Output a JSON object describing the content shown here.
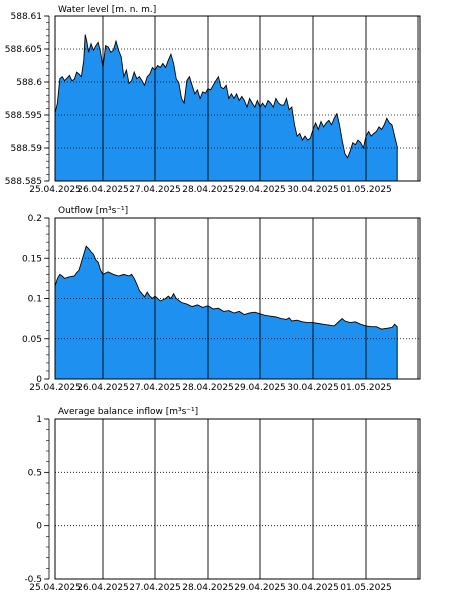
{
  "chart_data": [
    {
      "type": "area",
      "title": "Water level [m. n. m.]",
      "x": [
        "25.04.2025",
        "26.04.2025",
        "27.04.2025",
        "28.04.2025",
        "29.04.2025",
        "30.04.2025",
        "01.05.2025"
      ],
      "ylim": [
        588.585,
        588.61
      ],
      "yticks": [
        "588.61",
        "588.605",
        "588.6",
        "588.595",
        "588.59",
        "588.585"
      ],
      "grid": "vertical solid, horizontal dotted",
      "fill_color": "#1e90f0",
      "series": [
        {
          "points": [
            [
              0.0,
              588.5953
            ],
            [
              0.05,
              588.5968
            ],
            [
              0.1,
              588.6005
            ],
            [
              0.15,
              588.6008
            ],
            [
              0.2,
              588.6002
            ],
            [
              0.25,
              588.6006
            ],
            [
              0.3,
              588.601
            ],
            [
              0.35,
              588.6002
            ],
            [
              0.4,
              588.6004
            ],
            [
              0.45,
              588.6015
            ],
            [
              0.5,
              588.6012
            ],
            [
              0.55,
              588.6008
            ],
            [
              0.6,
              588.6033
            ],
            [
              0.63,
              588.6072
            ],
            [
              0.66,
              588.6062
            ],
            [
              0.7,
              588.6045
            ],
            [
              0.75,
              588.6058
            ],
            [
              0.8,
              588.6048
            ],
            [
              0.85,
              588.6055
            ],
            [
              0.9,
              588.606
            ],
            [
              0.95,
              588.6045
            ],
            [
              1.0,
              588.6022
            ],
            [
              1.05,
              588.6055
            ],
            [
              1.1,
              588.6053
            ],
            [
              1.15,
              588.6045
            ],
            [
              1.2,
              588.6048
            ],
            [
              1.25,
              588.6062
            ],
            [
              1.3,
              588.6048
            ],
            [
              1.35,
              588.6038
            ],
            [
              1.4,
              588.6008
            ],
            [
              1.45,
              588.6018
            ],
            [
              1.5,
              588.5998
            ],
            [
              1.55,
              588.6002
            ],
            [
              1.6,
              588.6015
            ],
            [
              1.65,
              588.6005
            ],
            [
              1.7,
              588.6008
            ],
            [
              1.75,
              588.6002
            ],
            [
              1.8,
              588.5995
            ],
            [
              1.85,
              588.6008
            ],
            [
              1.9,
              588.6012
            ],
            [
              1.95,
              588.6022
            ],
            [
              2.0,
              588.6018
            ],
            [
              2.05,
              588.6025
            ],
            [
              2.1,
              588.6022
            ],
            [
              2.15,
              588.6028
            ],
            [
              2.2,
              588.6022
            ],
            [
              2.25,
              588.6033
            ],
            [
              2.3,
              588.6042
            ],
            [
              2.35,
              588.6028
            ],
            [
              2.4,
              588.6005
            ],
            [
              2.45,
              588.5998
            ],
            [
              2.5,
              588.5975
            ],
            [
              2.55,
              588.5968
            ],
            [
              2.6,
              588.6002
            ],
            [
              2.65,
              588.6008
            ],
            [
              2.7,
              588.5995
            ],
            [
              2.75,
              588.5982
            ],
            [
              2.8,
              588.5988
            ],
            [
              2.85,
              588.5975
            ],
            [
              2.9,
              588.5985
            ],
            [
              2.95,
              588.5983
            ],
            [
              3.0,
              588.599
            ],
            [
              3.05,
              588.5988
            ],
            [
              3.1,
              588.5995
            ],
            [
              3.15,
              588.6002
            ],
            [
              3.2,
              588.6008
            ],
            [
              3.25,
              588.5992
            ],
            [
              3.3,
              588.599
            ],
            [
              3.35,
              588.5995
            ],
            [
              3.4,
              588.5975
            ],
            [
              3.45,
              588.5982
            ],
            [
              3.5,
              588.5975
            ],
            [
              3.55,
              588.5982
            ],
            [
              3.6,
              588.5972
            ],
            [
              3.65,
              588.5978
            ],
            [
              3.7,
              588.5972
            ],
            [
              3.75,
              588.5962
            ],
            [
              3.8,
              588.5975
            ],
            [
              3.85,
              588.5968
            ],
            [
              3.9,
              588.5962
            ],
            [
              3.95,
              588.5972
            ],
            [
              4.0,
              588.5962
            ],
            [
              4.05,
              588.5968
            ],
            [
              4.1,
              588.5962
            ],
            [
              4.15,
              588.5972
            ],
            [
              4.2,
              588.5968
            ],
            [
              4.25,
              588.5962
            ],
            [
              4.3,
              588.5975
            ],
            [
              4.35,
              588.5968
            ],
            [
              4.4,
              588.5965
            ],
            [
              4.45,
              588.5965
            ],
            [
              4.5,
              588.5975
            ],
            [
              4.55,
              588.5958
            ],
            [
              4.6,
              588.5962
            ],
            [
              4.65,
              588.5935
            ],
            [
              4.7,
              588.5918
            ],
            [
              4.75,
              588.5922
            ],
            [
              4.8,
              588.5912
            ],
            [
              4.85,
              588.5918
            ],
            [
              4.9,
              588.5912
            ],
            [
              4.95,
              588.5915
            ],
            [
              5.0,
              588.5928
            ],
            [
              5.05,
              588.5938
            ],
            [
              5.1,
              588.5928
            ],
            [
              5.15,
              588.594
            ],
            [
              5.2,
              588.5932
            ],
            [
              5.25,
              588.5938
            ],
            [
              5.3,
              588.5942
            ],
            [
              5.35,
              588.5935
            ],
            [
              5.4,
              588.5945
            ],
            [
              5.45,
              588.5952
            ],
            [
              5.5,
              588.5935
            ],
            [
              5.55,
              588.5912
            ],
            [
              5.6,
              588.5892
            ],
            [
              5.65,
              588.5885
            ],
            [
              5.7,
              588.5895
            ],
            [
              5.75,
              588.5908
            ],
            [
              5.8,
              588.5905
            ],
            [
              5.85,
              588.5912
            ],
            [
              5.9,
              588.5908
            ],
            [
              5.95,
              588.59
            ],
            [
              6.0,
              588.5918
            ],
            [
              6.05,
              588.5925
            ],
            [
              6.1,
              588.5918
            ],
            [
              6.15,
              588.5922
            ],
            [
              6.2,
              588.5925
            ],
            [
              6.25,
              588.5932
            ],
            [
              6.3,
              588.5928
            ],
            [
              6.35,
              588.5935
            ],
            [
              6.4,
              588.5945
            ],
            [
              6.45,
              588.5938
            ],
            [
              6.5,
              588.5935
            ],
            [
              6.55,
              588.5918
            ],
            [
              6.6,
              588.5902
            ]
          ]
        }
      ]
    },
    {
      "type": "area",
      "title": "Outflow [m³s⁻¹]",
      "x": [
        "25.04.2025",
        "26.04.2025",
        "27.04.2025",
        "28.04.2025",
        "29.04.2025",
        "30.04.2025",
        "01.05.2025"
      ],
      "ylim": [
        0,
        0.2
      ],
      "yticks": [
        "0.2",
        "0.15",
        "0.1",
        "0.05",
        "0"
      ],
      "grid": "vertical solid, horizontal dotted",
      "fill_color": "#1e90f0",
      "series": [
        {
          "points": [
            [
              0.0,
              0.115
            ],
            [
              0.05,
              0.125
            ],
            [
              0.1,
              0.13
            ],
            [
              0.15,
              0.128
            ],
            [
              0.2,
              0.125
            ],
            [
              0.3,
              0.127
            ],
            [
              0.4,
              0.128
            ],
            [
              0.45,
              0.132
            ],
            [
              0.5,
              0.135
            ],
            [
              0.55,
              0.145
            ],
            [
              0.6,
              0.155
            ],
            [
              0.65,
              0.165
            ],
            [
              0.7,
              0.162
            ],
            [
              0.75,
              0.158
            ],
            [
              0.8,
              0.155
            ],
            [
              0.85,
              0.148
            ],
            [
              0.9,
              0.145
            ],
            [
              0.95,
              0.135
            ],
            [
              1.0,
              0.13
            ],
            [
              1.1,
              0.133
            ],
            [
              1.2,
              0.13
            ],
            [
              1.3,
              0.128
            ],
            [
              1.4,
              0.13
            ],
            [
              1.5,
              0.128
            ],
            [
              1.55,
              0.13
            ],
            [
              1.6,
              0.125
            ],
            [
              1.65,
              0.118
            ],
            [
              1.7,
              0.11
            ],
            [
              1.75,
              0.106
            ],
            [
              1.8,
              0.102
            ],
            [
              1.85,
              0.108
            ],
            [
              1.9,
              0.103
            ],
            [
              1.95,
              0.1
            ],
            [
              2.0,
              0.103
            ],
            [
              2.05,
              0.1
            ],
            [
              2.1,
              0.097
            ],
            [
              2.2,
              0.1
            ],
            [
              2.25,
              0.103
            ],
            [
              2.3,
              0.1
            ],
            [
              2.35,
              0.106
            ],
            [
              2.4,
              0.1
            ],
            [
              2.5,
              0.095
            ],
            [
              2.6,
              0.093
            ],
            [
              2.7,
              0.09
            ],
            [
              2.8,
              0.092
            ],
            [
              2.9,
              0.089
            ],
            [
              3.0,
              0.091
            ],
            [
              3.1,
              0.087
            ],
            [
              3.2,
              0.088
            ],
            [
              3.3,
              0.084
            ],
            [
              3.4,
              0.085
            ],
            [
              3.5,
              0.082
            ],
            [
              3.6,
              0.084
            ],
            [
              3.7,
              0.08
            ],
            [
              3.8,
              0.082
            ],
            [
              3.9,
              0.083
            ],
            [
              4.0,
              0.081
            ],
            [
              4.1,
              0.079
            ],
            [
              4.2,
              0.078
            ],
            [
              4.3,
              0.077
            ],
            [
              4.4,
              0.075
            ],
            [
              4.5,
              0.074
            ],
            [
              4.55,
              0.076
            ],
            [
              4.6,
              0.072
            ],
            [
              4.7,
              0.073
            ],
            [
              4.8,
              0.071
            ],
            [
              4.9,
              0.07
            ],
            [
              5.0,
              0.07
            ],
            [
              5.1,
              0.069
            ],
            [
              5.2,
              0.068
            ],
            [
              5.3,
              0.067
            ],
            [
              5.4,
              0.066
            ],
            [
              5.5,
              0.072
            ],
            [
              5.55,
              0.075
            ],
            [
              5.6,
              0.072
            ],
            [
              5.7,
              0.07
            ],
            [
              5.8,
              0.071
            ],
            [
              5.9,
              0.068
            ],
            [
              6.0,
              0.066
            ],
            [
              6.1,
              0.065
            ],
            [
              6.2,
              0.065
            ],
            [
              6.3,
              0.062
            ],
            [
              6.4,
              0.063
            ],
            [
              6.5,
              0.064
            ],
            [
              6.55,
              0.068
            ],
            [
              6.6,
              0.065
            ]
          ]
        }
      ]
    },
    {
      "type": "line",
      "title": "Average balance inflow  [m³s⁻¹]",
      "x": [
        "25.04.2025",
        "26.04.2025",
        "27.04.2025",
        "28.04.2025",
        "29.04.2025",
        "30.04.2025",
        "01.05.2025"
      ],
      "ylim": [
        -0.5,
        1
      ],
      "yticks": [
        "1",
        "0.5",
        "0",
        "-0.5"
      ],
      "grid": "vertical solid, horizontal dotted",
      "series": []
    }
  ]
}
